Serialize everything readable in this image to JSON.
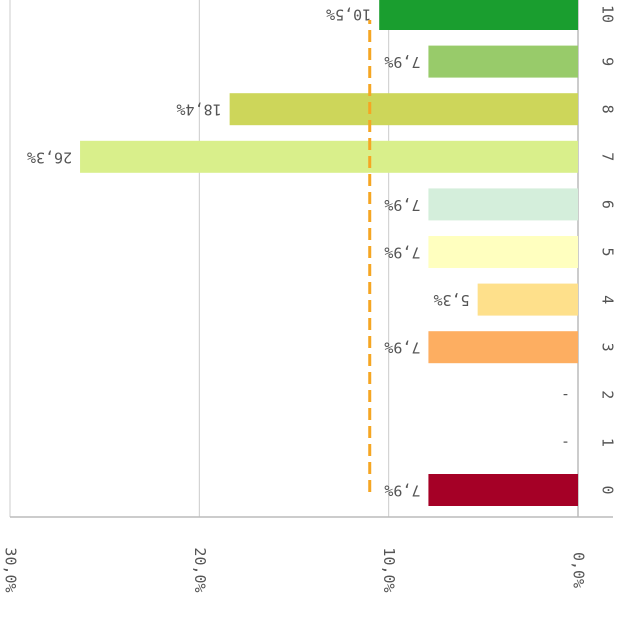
{
  "chart_data": {
    "type": "barh",
    "categories": [
      "0",
      "1",
      "2",
      "3",
      "4",
      "5",
      "6",
      "7",
      "8",
      "9",
      "10"
    ],
    "values": [
      7.9,
      0,
      0,
      7.9,
      5.3,
      7.9,
      7.9,
      26.3,
      18.4,
      7.9,
      10.5
    ],
    "value_labels": [
      "7,9%",
      "-",
      "-",
      "7,9%",
      "5,3%",
      "7,9%",
      "7,9%",
      "26,3%",
      "18,4%",
      "7,9%",
      "10,5%"
    ],
    "colors": [
      "#a50026",
      "#d73027",
      "#f46d43",
      "#fdae61",
      "#fee08b",
      "#ffffbf",
      "#d4eedb",
      "#d9ef8b",
      "#cdd65a",
      "#98cb6a",
      "#1a9e2f"
    ],
    "xlim": [
      0,
      30
    ],
    "xticks": [
      {
        "value": 0,
        "label": "0,0%"
      },
      {
        "value": 10,
        "label": "10,0%"
      },
      {
        "value": 20,
        "label": "20,0%"
      },
      {
        "value": 30,
        "label": "30,0%"
      }
    ],
    "grid": true,
    "reference_line": 11
  }
}
